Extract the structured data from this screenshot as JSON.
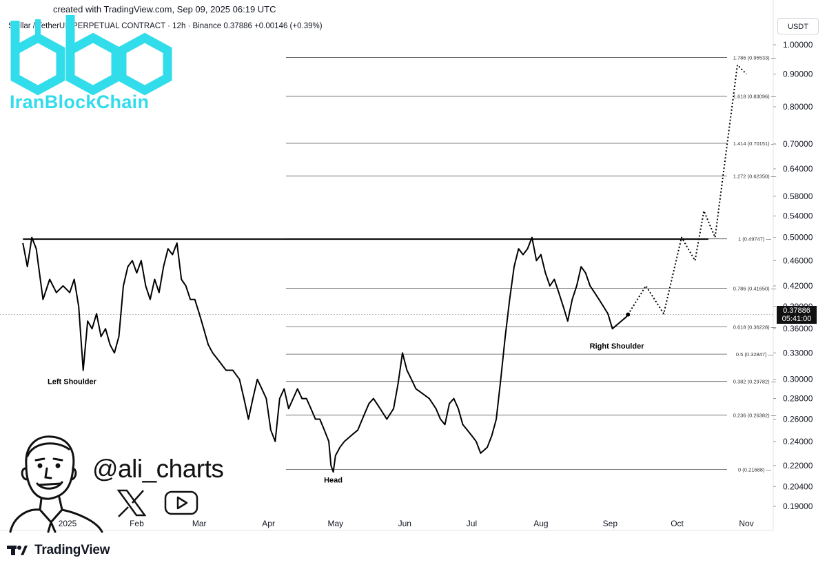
{
  "header": {
    "created": "created with TradingView.com, Sep 09, 2025 06:19 UTC",
    "title": "Stellar / TetherUS PERPETUAL CONTRACT · 12h · Binance  0.37886  +0.00146 (+0.39%)"
  },
  "currency_button": "USDT",
  "watermark": {
    "brand": "IranBlockChain",
    "handle": "@ali_charts",
    "icons": [
      "x-logo-icon",
      "youtube-icon",
      "avatar-illustration"
    ]
  },
  "footer": {
    "logo_text": "TradingView"
  },
  "current_price": {
    "price": "0.37886",
    "countdown": "05:41:00",
    "price_value": 0.37886
  },
  "chart_data": {
    "type": "line",
    "symbol": "Stellar / TetherUS PERPETUAL CONTRACT",
    "interval": "12h",
    "exchange": "Binance",
    "y_scale": "log",
    "ylim": [
      0.18,
      1.06
    ],
    "y_ticks": [
      "1.00000",
      "0.90000",
      "0.80000",
      "0.70000",
      "0.64000",
      "0.58000",
      "0.54000",
      "0.50000",
      "0.46000",
      "0.42000",
      "0.39000",
      "0.36000",
      "0.33000",
      "0.30000",
      "0.28000",
      "0.26000",
      "0.24000",
      "0.22000",
      "0.20400",
      "0.19000"
    ],
    "y_tick_values": [
      1.0,
      0.9,
      0.8,
      0.7,
      0.64,
      0.58,
      0.54,
      0.5,
      0.46,
      0.42,
      0.39,
      0.36,
      0.33,
      0.3,
      0.28,
      0.26,
      0.24,
      0.22,
      0.204,
      0.19
    ],
    "x_range": [
      "2024-12-10",
      "2025-11-20"
    ],
    "x_ticks": [
      {
        "label": "2025",
        "date": "2025-01-01"
      },
      {
        "label": "Feb",
        "date": "2025-02-01"
      },
      {
        "label": "Mar",
        "date": "2025-03-01"
      },
      {
        "label": "Apr",
        "date": "2025-04-01"
      },
      {
        "label": "May",
        "date": "2025-05-01"
      },
      {
        "label": "Jun",
        "date": "2025-06-01"
      },
      {
        "label": "Jul",
        "date": "2025-07-01"
      },
      {
        "label": "Aug",
        "date": "2025-08-01"
      },
      {
        "label": "Sep",
        "date": "2025-09-01"
      },
      {
        "label": "Oct",
        "date": "2025-10-01"
      },
      {
        "label": "Nov",
        "date": "2025-11-01"
      }
    ],
    "fib_levels": [
      {
        "label": "0 (0.21688)",
        "value": 0.21688
      },
      {
        "label": "0.236 (0.26382)",
        "value": 0.26382
      },
      {
        "label": "0.382 (0.29782)",
        "value": 0.29782
      },
      {
        "label": "0.5 (0.32847)",
        "value": 0.32847
      },
      {
        "label": "0.618 (0.36228)",
        "value": 0.36228
      },
      {
        "label": "0.786 (0.41650)",
        "value": 0.4165
      },
      {
        "label": "1 (0.49747)",
        "value": 0.49747
      },
      {
        "label": "1.272 (0.62350)",
        "value": 0.6235
      },
      {
        "label": "1.414 (0.70151)",
        "value": 0.70151
      },
      {
        "label": "1.618 (0.83096)",
        "value": 0.83096
      },
      {
        "label": "1.786 (0.95533)",
        "value": 0.95533
      }
    ],
    "neckline": {
      "value": 0.497,
      "from": "2024-12-12",
      "to": "2025-10-15"
    },
    "series": [
      {
        "points": [
          [
            "2024-12-12",
            0.49
          ],
          [
            "2024-12-14",
            0.45
          ],
          [
            "2024-12-16",
            0.5
          ],
          [
            "2024-12-18",
            0.48
          ],
          [
            "2024-12-21",
            0.4
          ],
          [
            "2024-12-24",
            0.43
          ],
          [
            "2024-12-27",
            0.41
          ],
          [
            "2024-12-30",
            0.42
          ],
          [
            "2025-01-02",
            0.41
          ],
          [
            "2025-01-04",
            0.43
          ],
          [
            "2025-01-06",
            0.39
          ],
          [
            "2025-01-08",
            0.31
          ],
          [
            "2025-01-10",
            0.37
          ],
          [
            "2025-01-12",
            0.36
          ],
          [
            "2025-01-14",
            0.38
          ],
          [
            "2025-01-16",
            0.35
          ],
          [
            "2025-01-18",
            0.36
          ],
          [
            "2025-01-20",
            0.34
          ],
          [
            "2025-01-22",
            0.33
          ],
          [
            "2025-01-24",
            0.35
          ],
          [
            "2025-01-26",
            0.42
          ],
          [
            "2025-01-28",
            0.45
          ],
          [
            "2025-01-30",
            0.46
          ],
          [
            "2025-02-01",
            0.44
          ],
          [
            "2025-02-03",
            0.46
          ],
          [
            "2025-02-05",
            0.42
          ],
          [
            "2025-02-07",
            0.4
          ],
          [
            "2025-02-09",
            0.43
          ],
          [
            "2025-02-11",
            0.41
          ],
          [
            "2025-02-13",
            0.45
          ],
          [
            "2025-02-15",
            0.48
          ],
          [
            "2025-02-17",
            0.47
          ],
          [
            "2025-02-19",
            0.49
          ],
          [
            "2025-02-21",
            0.43
          ],
          [
            "2025-02-23",
            0.42
          ],
          [
            "2025-02-25",
            0.4
          ],
          [
            "2025-02-27",
            0.4
          ],
          [
            "2025-03-01",
            0.38
          ],
          [
            "2025-03-03",
            0.36
          ],
          [
            "2025-03-05",
            0.34
          ],
          [
            "2025-03-07",
            0.33
          ],
          [
            "2025-03-10",
            0.32
          ],
          [
            "2025-03-13",
            0.31
          ],
          [
            "2025-03-16",
            0.31
          ],
          [
            "2025-03-19",
            0.3
          ],
          [
            "2025-03-21",
            0.28
          ],
          [
            "2025-03-23",
            0.26
          ],
          [
            "2025-03-25",
            0.28
          ],
          [
            "2025-03-27",
            0.3
          ],
          [
            "2025-03-29",
            0.29
          ],
          [
            "2025-03-31",
            0.28
          ],
          [
            "2025-04-02",
            0.25
          ],
          [
            "2025-04-04",
            0.24
          ],
          [
            "2025-04-06",
            0.28
          ],
          [
            "2025-04-08",
            0.29
          ],
          [
            "2025-04-10",
            0.27
          ],
          [
            "2025-04-12",
            0.28
          ],
          [
            "2025-04-14",
            0.29
          ],
          [
            "2025-04-16",
            0.28
          ],
          [
            "2025-04-18",
            0.28
          ],
          [
            "2025-04-20",
            0.27
          ],
          [
            "2025-04-22",
            0.26
          ],
          [
            "2025-04-24",
            0.26
          ],
          [
            "2025-04-26",
            0.25
          ],
          [
            "2025-04-28",
            0.24
          ],
          [
            "2025-04-29",
            0.22
          ],
          [
            "2025-04-30",
            0.215
          ],
          [
            "2025-05-01",
            0.228
          ],
          [
            "2025-05-03",
            0.235
          ],
          [
            "2025-05-05",
            0.24
          ],
          [
            "2025-05-08",
            0.245
          ],
          [
            "2025-05-11",
            0.25
          ],
          [
            "2025-05-13",
            0.26
          ],
          [
            "2025-05-16",
            0.275
          ],
          [
            "2025-05-18",
            0.28
          ],
          [
            "2025-05-21",
            0.27
          ],
          [
            "2025-05-24",
            0.26
          ],
          [
            "2025-05-27",
            0.27
          ],
          [
            "2025-05-29",
            0.295
          ],
          [
            "2025-05-31",
            0.33
          ],
          [
            "2025-06-02",
            0.31
          ],
          [
            "2025-06-04",
            0.3
          ],
          [
            "2025-06-06",
            0.29
          ],
          [
            "2025-06-09",
            0.285
          ],
          [
            "2025-06-12",
            0.28
          ],
          [
            "2025-06-15",
            0.27
          ],
          [
            "2025-06-17",
            0.26
          ],
          [
            "2025-06-19",
            0.255
          ],
          [
            "2025-06-21",
            0.275
          ],
          [
            "2025-06-23",
            0.28
          ],
          [
            "2025-06-25",
            0.27
          ],
          [
            "2025-06-27",
            0.255
          ],
          [
            "2025-06-29",
            0.25
          ],
          [
            "2025-07-01",
            0.245
          ],
          [
            "2025-07-03",
            0.24
          ],
          [
            "2025-07-05",
            0.23
          ],
          [
            "2025-07-08",
            0.235
          ],
          [
            "2025-07-10",
            0.245
          ],
          [
            "2025-07-12",
            0.26
          ],
          [
            "2025-07-14",
            0.3
          ],
          [
            "2025-07-16",
            0.35
          ],
          [
            "2025-07-18",
            0.4
          ],
          [
            "2025-07-20",
            0.45
          ],
          [
            "2025-07-22",
            0.48
          ],
          [
            "2025-07-24",
            0.47
          ],
          [
            "2025-07-26",
            0.48
          ],
          [
            "2025-07-28",
            0.5
          ],
          [
            "2025-07-30",
            0.46
          ],
          [
            "2025-08-01",
            0.47
          ],
          [
            "2025-08-03",
            0.44
          ],
          [
            "2025-08-05",
            0.42
          ],
          [
            "2025-08-07",
            0.43
          ],
          [
            "2025-08-09",
            0.41
          ],
          [
            "2025-08-11",
            0.39
          ],
          [
            "2025-08-13",
            0.37
          ],
          [
            "2025-08-15",
            0.4
          ],
          [
            "2025-08-17",
            0.42
          ],
          [
            "2025-08-19",
            0.45
          ],
          [
            "2025-08-21",
            0.44
          ],
          [
            "2025-08-23",
            0.42
          ],
          [
            "2025-08-25",
            0.41
          ],
          [
            "2025-08-27",
            0.4
          ],
          [
            "2025-08-29",
            0.39
          ],
          [
            "2025-08-31",
            0.38
          ],
          [
            "2025-09-02",
            0.36
          ],
          [
            "2025-09-04",
            0.365
          ],
          [
            "2025-09-06",
            0.37
          ],
          [
            "2025-09-08",
            0.375
          ],
          [
            "2025-09-09",
            0.37886
          ]
        ]
      },
      {
        "style": "dotted",
        "points": [
          [
            "2025-09-09",
            0.37886
          ],
          [
            "2025-09-17",
            0.42
          ],
          [
            "2025-09-25",
            0.38
          ],
          [
            "2025-10-03",
            0.5
          ],
          [
            "2025-10-09",
            0.46
          ],
          [
            "2025-10-13",
            0.55
          ],
          [
            "2025-10-18",
            0.5
          ],
          [
            "2025-10-28",
            0.93
          ],
          [
            "2025-11-01",
            0.9
          ]
        ]
      }
    ],
    "annotations": [
      {
        "text": "Left Shoulder",
        "date": "2025-01-03",
        "value": 0.295
      },
      {
        "text": "Head",
        "date": "2025-04-30",
        "value": 0.207
      },
      {
        "text": "Right Shoulder",
        "date": "2025-09-04",
        "value": 0.335
      }
    ]
  }
}
